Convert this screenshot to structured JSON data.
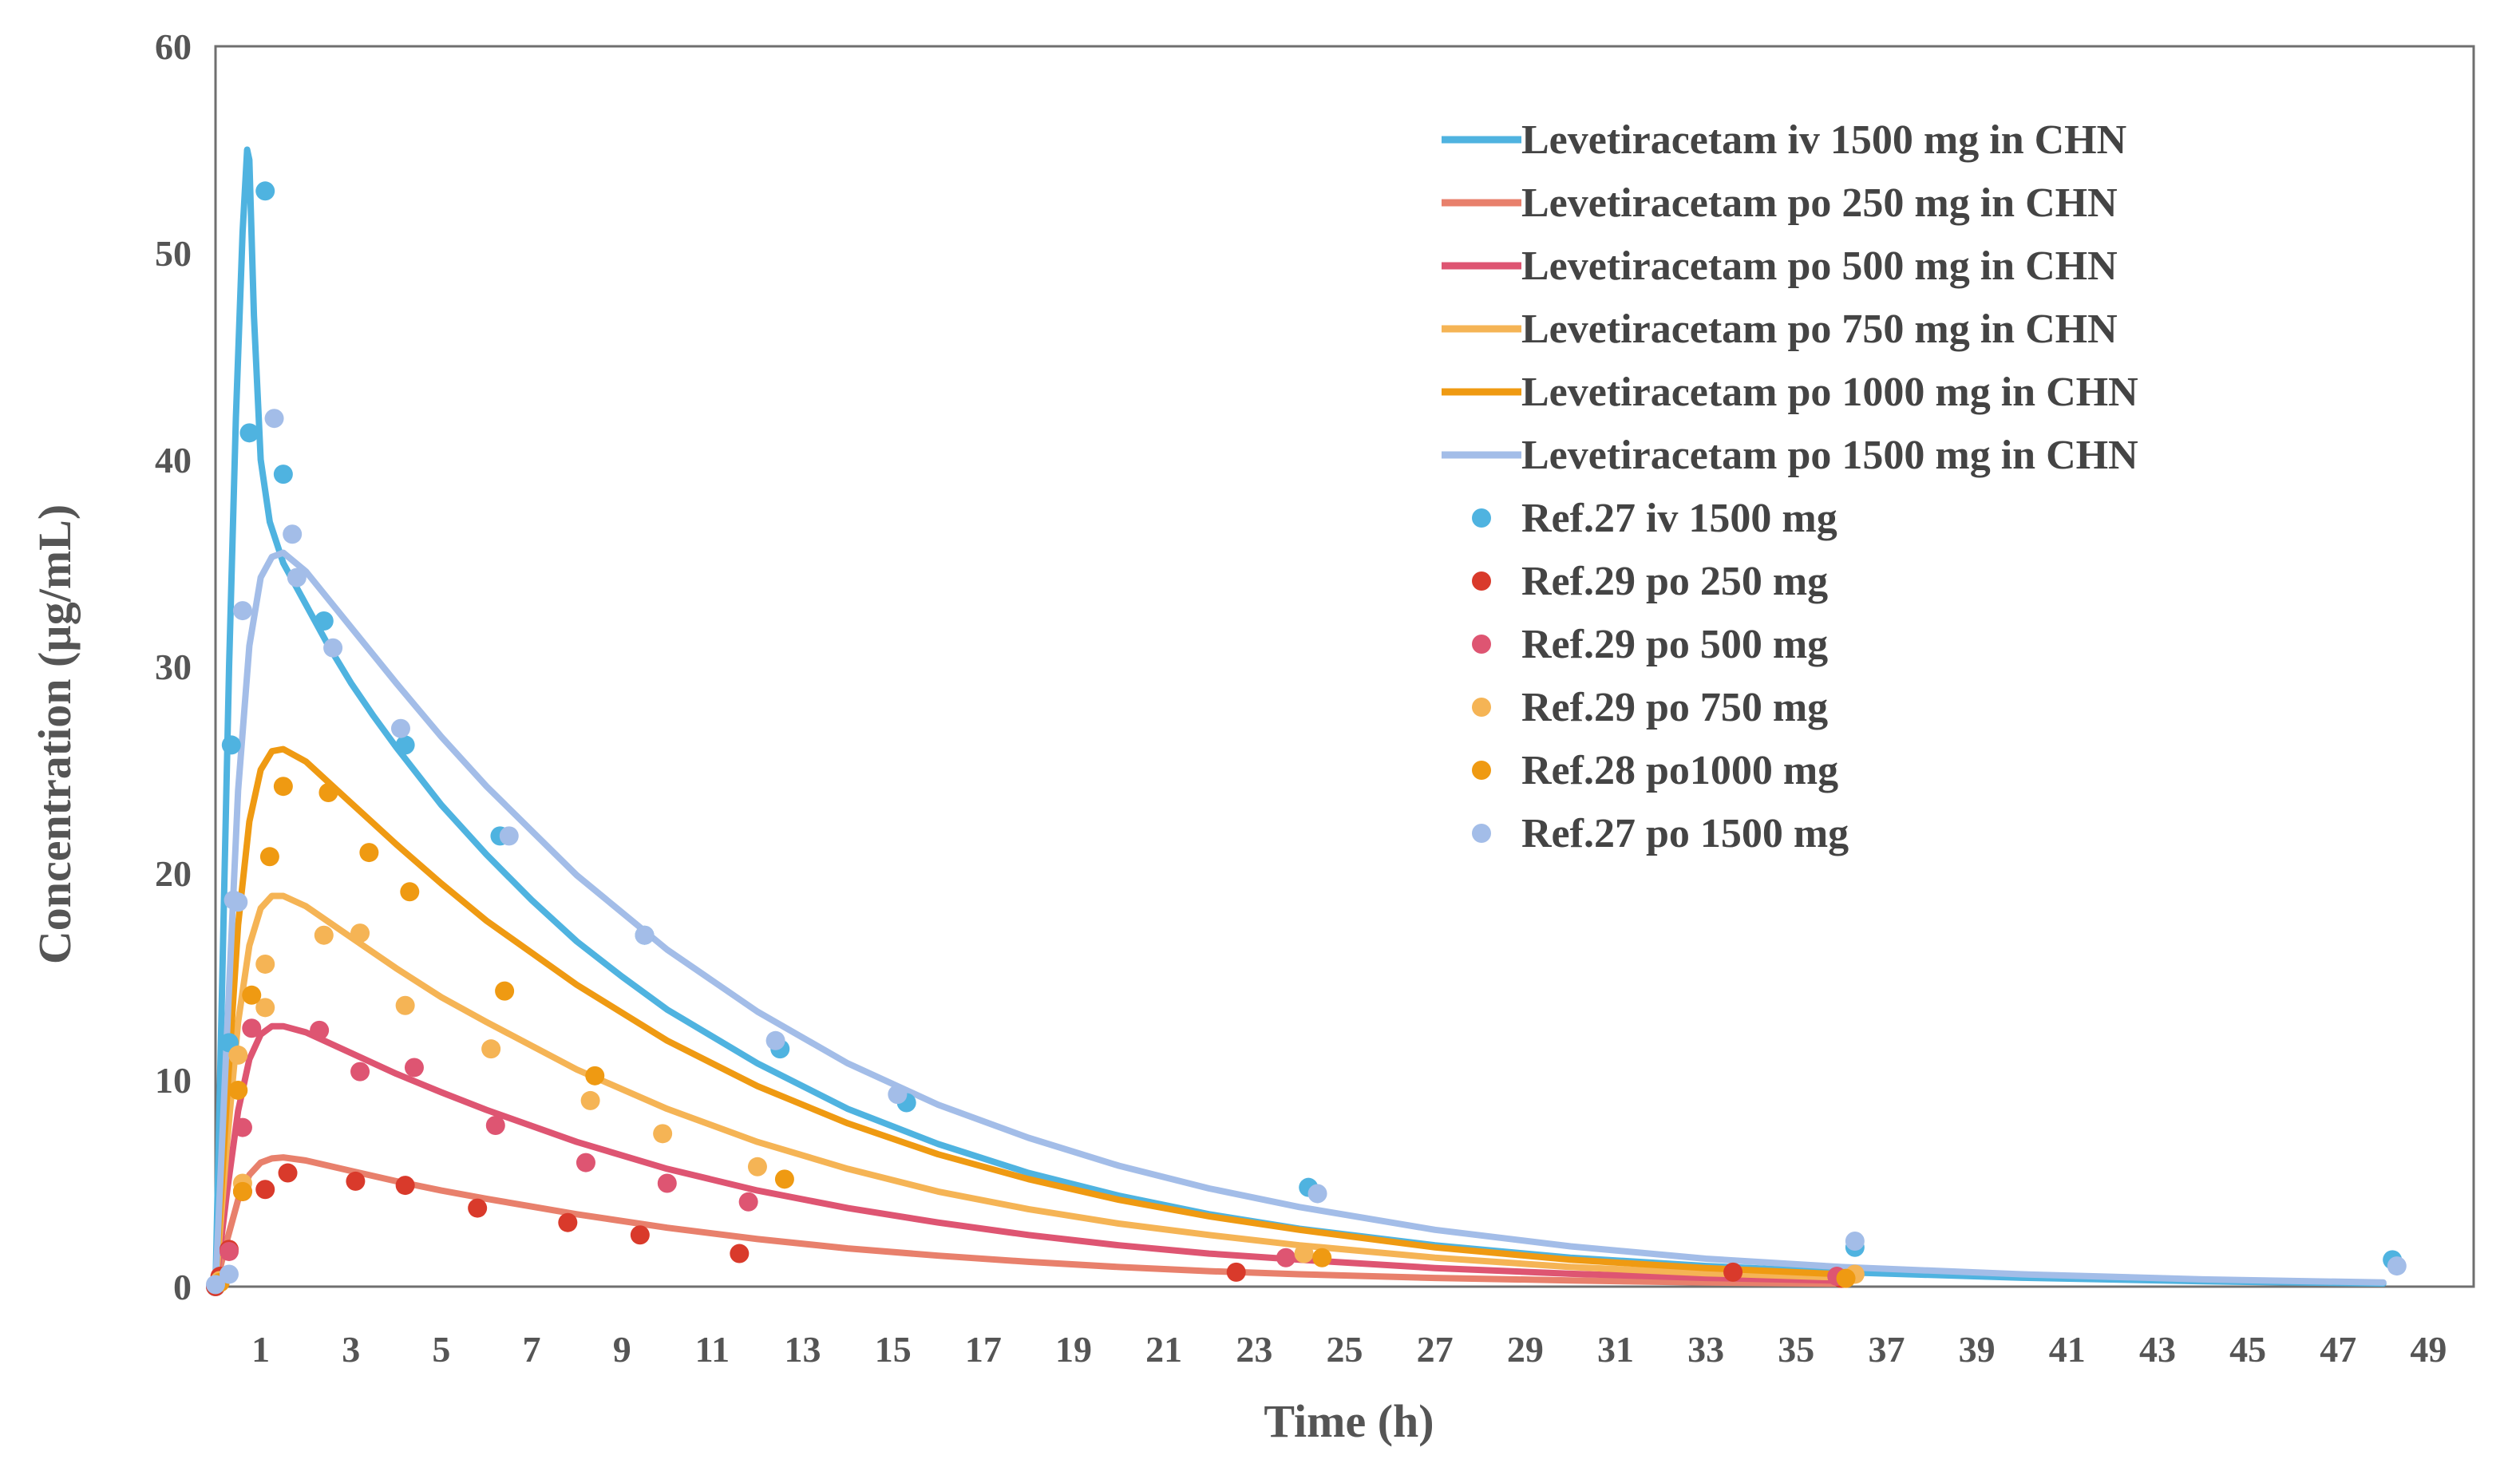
{
  "chart_data": {
    "type": "line",
    "title": "",
    "xlabel": "Time (h)",
    "ylabel": "Concentration (µg/mL)",
    "xlim": [
      0,
      50
    ],
    "ylim": [
      0,
      60
    ],
    "x_ticks": [
      1,
      3,
      5,
      7,
      9,
      11,
      13,
      15,
      17,
      19,
      21,
      23,
      25,
      27,
      29,
      31,
      33,
      35,
      37,
      39,
      41,
      43,
      45,
      47,
      49
    ],
    "y_ticks": [
      0,
      10,
      20,
      30,
      40,
      50,
      60
    ],
    "legend_position": "top-right",
    "colors": {
      "iv1500": "#4fb3e0",
      "po250": "#e8806c",
      "po500": "#de5572",
      "po750": "#f5b455",
      "po1000": "#ef9a12",
      "po1500": "#a3bde8",
      "ref29_250_marker": "#d93a2b"
    },
    "series": [
      {
        "name": "Levetiracetam iv 1500 mg in CHN",
        "kind": "line",
        "color_key": "iv1500",
        "x": [
          0,
          0.15,
          0.3,
          0.45,
          0.6,
          0.7,
          0.75,
          0.85,
          1.0,
          1.2,
          1.5,
          2,
          2.5,
          3,
          3.5,
          4,
          5,
          6,
          7,
          8,
          9,
          10,
          12,
          14,
          16,
          18,
          20,
          22,
          24,
          27,
          30,
          33,
          36,
          40,
          44,
          48
        ],
        "values": [
          0,
          15,
          30,
          42,
          51,
          55,
          54.5,
          47,
          40,
          37,
          35,
          33,
          31,
          29.2,
          27.6,
          26.1,
          23.3,
          20.9,
          18.7,
          16.7,
          15,
          13.4,
          10.8,
          8.6,
          6.9,
          5.5,
          4.4,
          3.5,
          2.8,
          2,
          1.4,
          1,
          0.7,
          0.43,
          0.26,
          0.15
        ]
      },
      {
        "name": "Levetiracetam po 250 mg in CHN",
        "kind": "line",
        "color_key": "po250",
        "x": [
          0,
          0.25,
          0.5,
          0.75,
          1.0,
          1.25,
          1.5,
          2,
          3,
          4,
          5,
          6,
          8,
          10,
          12,
          14,
          16,
          18,
          20,
          22,
          24,
          27,
          30,
          33,
          36
        ],
        "values": [
          0,
          2.2,
          4.2,
          5.4,
          6.0,
          6.2,
          6.25,
          6.1,
          5.6,
          5.1,
          4.65,
          4.25,
          3.5,
          2.85,
          2.3,
          1.85,
          1.5,
          1.2,
          0.95,
          0.75,
          0.6,
          0.42,
          0.3,
          0.2,
          0.14
        ]
      },
      {
        "name": "Levetiracetam po 500 mg in CHN",
        "kind": "line",
        "color_key": "po500",
        "x": [
          0,
          0.25,
          0.5,
          0.75,
          1.0,
          1.25,
          1.5,
          2,
          3,
          4,
          5,
          6,
          8,
          10,
          12,
          14,
          16,
          18,
          20,
          22,
          24,
          27,
          30,
          33,
          36
        ],
        "values": [
          0,
          4.5,
          8.5,
          11,
          12.2,
          12.6,
          12.6,
          12.3,
          11.3,
          10.3,
          9.4,
          8.55,
          7.0,
          5.7,
          4.65,
          3.8,
          3.1,
          2.5,
          2.0,
          1.6,
          1.3,
          0.9,
          0.62,
          0.42,
          0.29
        ]
      },
      {
        "name": "Levetiracetam po 750 mg in CHN",
        "kind": "line",
        "color_key": "po750",
        "x": [
          0,
          0.25,
          0.5,
          0.75,
          1.0,
          1.25,
          1.5,
          2,
          3,
          4,
          5,
          6,
          8,
          10,
          12,
          14,
          16,
          18,
          20,
          22,
          24,
          27,
          30,
          33,
          36
        ],
        "values": [
          0,
          6.8,
          12.8,
          16.5,
          18.3,
          18.9,
          18.9,
          18.4,
          16.9,
          15.4,
          14.0,
          12.8,
          10.5,
          8.6,
          7.0,
          5.7,
          4.6,
          3.75,
          3.05,
          2.5,
          2.0,
          1.4,
          0.95,
          0.65,
          0.44
        ]
      },
      {
        "name": "Levetiracetam po 1000 mg in CHN",
        "kind": "line",
        "color_key": "po1000",
        "x": [
          0,
          0.25,
          0.5,
          0.75,
          1.0,
          1.25,
          1.5,
          2,
          3,
          4,
          5,
          6,
          8,
          10,
          12,
          14,
          16,
          18,
          20,
          22,
          24,
          27,
          30,
          33,
          36
        ],
        "values": [
          0,
          9,
          17.5,
          22.5,
          25,
          25.9,
          26,
          25.4,
          23.4,
          21.4,
          19.5,
          17.7,
          14.6,
          11.9,
          9.7,
          7.9,
          6.4,
          5.2,
          4.2,
          3.4,
          2.75,
          1.9,
          1.3,
          0.9,
          0.6
        ]
      },
      {
        "name": "Levetiracetam po 1500 mg in CHN",
        "kind": "line",
        "color_key": "po1500",
        "x": [
          0,
          0.25,
          0.5,
          0.75,
          1.0,
          1.25,
          1.5,
          2,
          3,
          4,
          5,
          6,
          8,
          10,
          12,
          14,
          16,
          18,
          20,
          22,
          24,
          27,
          30,
          33,
          36,
          40,
          44,
          48
        ],
        "values": [
          0,
          12,
          24,
          31,
          34.3,
          35.3,
          35.5,
          34.6,
          31.9,
          29.2,
          26.6,
          24.2,
          19.9,
          16.3,
          13.3,
          10.8,
          8.8,
          7.2,
          5.85,
          4.75,
          3.85,
          2.75,
          1.95,
          1.35,
          0.95,
          0.6,
          0.35,
          0.2
        ]
      },
      {
        "name": "Ref.27 iv 1500 mg",
        "kind": "scatter",
        "color_key": "iv1500",
        "x": [
          0,
          0.3,
          0.35,
          0.75,
          1.1,
          1.5,
          2.4,
          4.2,
          6.3,
          9.5,
          12.5,
          15.3,
          24.2,
          36.3,
          48.2
        ],
        "values": [
          0,
          11.8,
          26.2,
          41.3,
          53,
          39.3,
          32.2,
          26.2,
          21.8,
          17,
          11.5,
          8.9,
          4.8,
          1.9,
          1.3
        ]
      },
      {
        "name": "Ref.29 po 250 mg",
        "kind": "scatter",
        "color_key": "ref29_250_marker",
        "x": [
          0,
          0.1,
          0.3,
          0.6,
          1.1,
          1.6,
          3.1,
          4.2,
          5.8,
          7.8,
          9.4,
          11.6,
          22.6,
          33.6,
          36
        ],
        "values": [
          0,
          0.5,
          1.8,
          4.6,
          4.7,
          5.5,
          5.1,
          4.9,
          3.8,
          3.1,
          2.5,
          1.6,
          0.7,
          0.7,
          0.4
        ]
      },
      {
        "name": "Ref.29 po 500 mg",
        "kind": "scatter",
        "color_key": "po500",
        "x": [
          0.1,
          0.3,
          0.6,
          0.8,
          2.3,
          3.2,
          4.4,
          6.2,
          8.2,
          10,
          11.8,
          23.7,
          35.9
        ],
        "values": [
          0.2,
          1.7,
          7.7,
          12.5,
          12.4,
          10.4,
          10.6,
          7.8,
          6.0,
          5.0,
          4.1,
          1.4,
          0.5
        ]
      },
      {
        "name": "Ref.29 po 750 mg",
        "kind": "scatter",
        "color_key": "po750",
        "x": [
          0.1,
          0.5,
          0.6,
          1.1,
          1.1,
          2.4,
          3.2,
          4.2,
          6.1,
          8.3,
          9.9,
          12,
          24.1,
          36.3
        ],
        "values": [
          0.3,
          11.2,
          5.0,
          13.5,
          15.6,
          17.0,
          17.1,
          13.6,
          11.5,
          9.0,
          7.4,
          5.8,
          1.6,
          0.6
        ]
      },
      {
        "name": "Ref.28 po1000 mg",
        "kind": "scatter",
        "color_key": "po1000",
        "x": [
          0.1,
          0.5,
          0.6,
          0.8,
          1.2,
          1.5,
          2.5,
          3.4,
          4.3,
          6.4,
          8.4,
          12.6,
          24.5,
          36.1
        ],
        "values": [
          0.2,
          9.5,
          4.6,
          14.1,
          20.8,
          24.2,
          23.9,
          21.0,
          19.1,
          14.3,
          10.2,
          5.2,
          1.4,
          0.4
        ]
      },
      {
        "name": "Ref.27 po 1500 mg",
        "kind": "scatter",
        "color_key": "po1500",
        "x": [
          0,
          0.3,
          0.4,
          0.5,
          0.6,
          1.3,
          1.7,
          1.8,
          2.6,
          4.1,
          6.5,
          9.5,
          12.4,
          15.1,
          24.4,
          36.3,
          48.3
        ],
        "values": [
          0.1,
          0.6,
          18.7,
          18.6,
          32.7,
          42.0,
          36.4,
          34.3,
          30.9,
          27.0,
          21.8,
          17.0,
          11.9,
          9.3,
          4.5,
          2.2,
          1.0
        ]
      }
    ]
  }
}
